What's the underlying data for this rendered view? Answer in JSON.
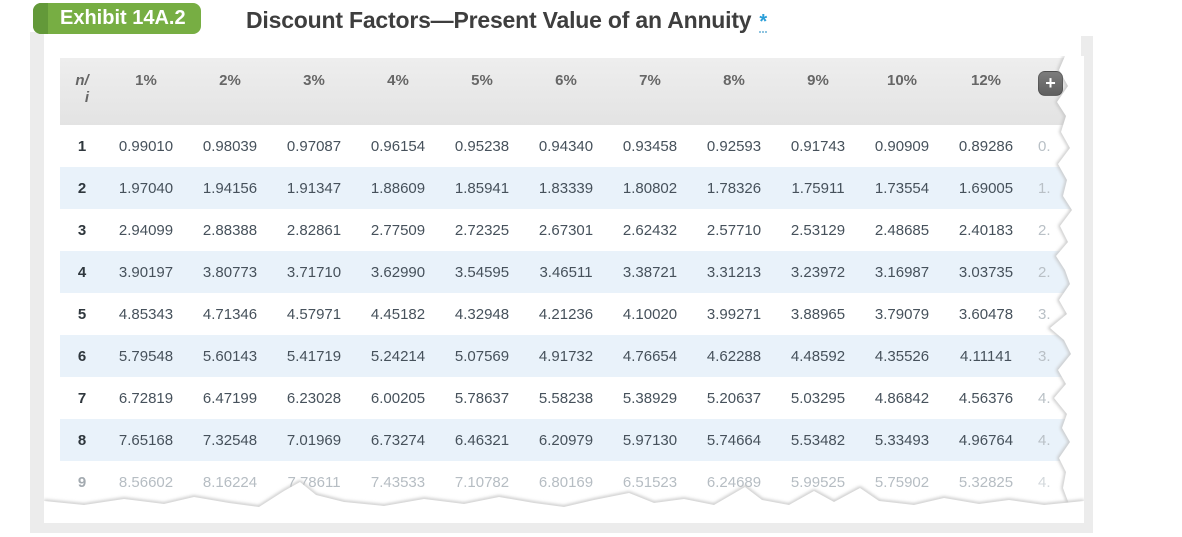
{
  "exhibit": {
    "badge_label": "Exhibit 14A.2",
    "title": "Discount Factors—Present Value of an Annuity",
    "footnote_marker": "*"
  },
  "colors": {
    "badge_green": "#77ae43",
    "badge_green_dark": "#639939",
    "accent_blue": "#2a9ed8",
    "row_alt_blue": "#e9f2fa",
    "header_bg": "#e9e9e9",
    "cell_text": "#46515b"
  },
  "table": {
    "corner_line1": "n/",
    "corner_line2": "i",
    "columns": [
      "1%",
      "2%",
      "3%",
      "4%",
      "5%",
      "6%",
      "7%",
      "8%",
      "9%",
      "10%",
      "12%"
    ],
    "add_button_label": "+",
    "rows": [
      {
        "n": "1",
        "values": [
          "0.99010",
          "0.98039",
          "0.97087",
          "0.96154",
          "0.95238",
          "0.94340",
          "0.93458",
          "0.92593",
          "0.91743",
          "0.90909",
          "0.89286"
        ],
        "partial": "0.",
        "faded": false
      },
      {
        "n": "2",
        "values": [
          "1.97040",
          "1.94156",
          "1.91347",
          "1.88609",
          "1.85941",
          "1.83339",
          "1.80802",
          "1.78326",
          "1.75911",
          "1.73554",
          "1.69005"
        ],
        "partial": "1.",
        "faded": false
      },
      {
        "n": "3",
        "values": [
          "2.94099",
          "2.88388",
          "2.82861",
          "2.77509",
          "2.72325",
          "2.67301",
          "2.62432",
          "2.57710",
          "2.53129",
          "2.48685",
          "2.40183"
        ],
        "partial": "2.",
        "faded": false
      },
      {
        "n": "4",
        "values": [
          "3.90197",
          "3.80773",
          "3.71710",
          "3.62990",
          "3.54595",
          "3.46511",
          "3.38721",
          "3.31213",
          "3.23972",
          "3.16987",
          "3.03735"
        ],
        "partial": "2.",
        "faded": false
      },
      {
        "n": "5",
        "values": [
          "4.85343",
          "4.71346",
          "4.57971",
          "4.45182",
          "4.32948",
          "4.21236",
          "4.10020",
          "3.99271",
          "3.88965",
          "3.79079",
          "3.60478"
        ],
        "partial": "3.",
        "faded": false
      },
      {
        "n": "6",
        "values": [
          "5.79548",
          "5.60143",
          "5.41719",
          "5.24214",
          "5.07569",
          "4.91732",
          "4.76654",
          "4.62288",
          "4.48592",
          "4.35526",
          "4.11141"
        ],
        "partial": "3.",
        "faded": false
      },
      {
        "n": "7",
        "values": [
          "6.72819",
          "6.47199",
          "6.23028",
          "6.00205",
          "5.78637",
          "5.58238",
          "5.38929",
          "5.20637",
          "5.03295",
          "4.86842",
          "4.56376"
        ],
        "partial": "4.",
        "faded": false
      },
      {
        "n": "8",
        "values": [
          "7.65168",
          "7.32548",
          "7.01969",
          "6.73274",
          "6.46321",
          "6.20979",
          "5.97130",
          "5.74664",
          "5.53482",
          "5.33493",
          "4.96764"
        ],
        "partial": "4.",
        "faded": false
      },
      {
        "n": "9",
        "values": [
          "8.56602",
          "8.16224",
          "7.78611",
          "7.43533",
          "7.10782",
          "6.80169",
          "6.51523",
          "6.24689",
          "5.99525",
          "5.75902",
          "5.32825"
        ],
        "partial": "4.",
        "faded": true
      }
    ]
  }
}
